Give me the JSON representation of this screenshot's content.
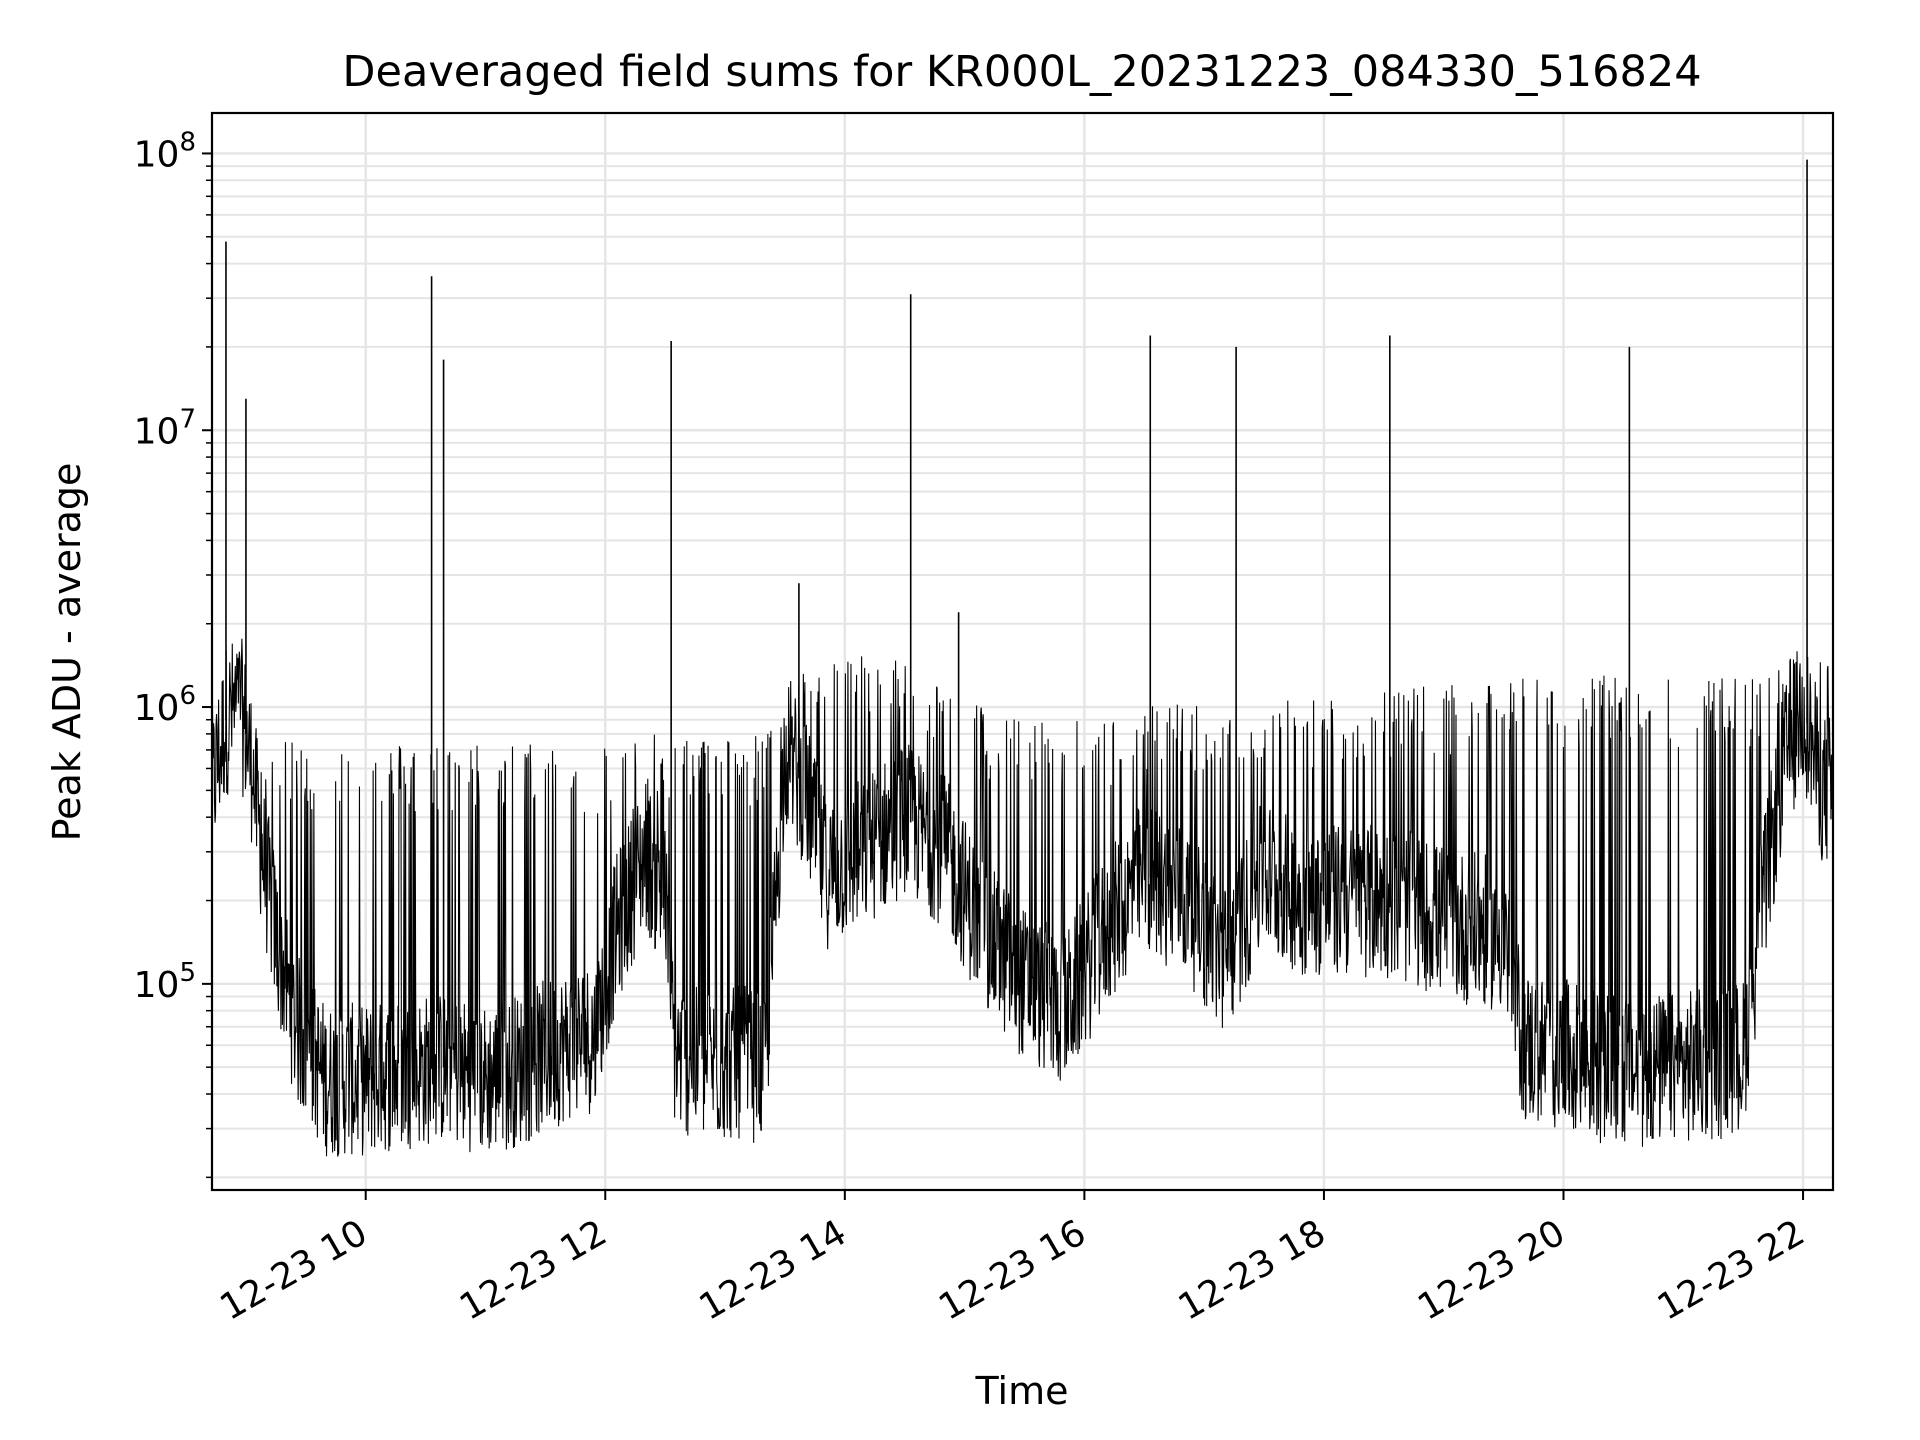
{
  "chart_data": {
    "type": "line",
    "title": "Deaveraged field sums for KR000L_20231223_084330_516824",
    "xlabel": "Time",
    "ylabel": "Peak ADU - average",
    "y_scale": "log",
    "ylim": [
      18000,
      140000000
    ],
    "xlim": [
      "2023-12-23 08:43",
      "2023-12-23 22:15"
    ],
    "grid": true,
    "line_color": "#000000",
    "grid_color": "#e5e5e5",
    "x_ticks": [
      {
        "value": "2023-12-23 10:00",
        "label": "12-23 10"
      },
      {
        "value": "2023-12-23 12:00",
        "label": "12-23 12"
      },
      {
        "value": "2023-12-23 14:00",
        "label": "12-23 14"
      },
      {
        "value": "2023-12-23 16:00",
        "label": "12-23 16"
      },
      {
        "value": "2023-12-23 18:00",
        "label": "12-23 18"
      },
      {
        "value": "2023-12-23 20:00",
        "label": "12-23 20"
      },
      {
        "value": "2023-12-23 22:00",
        "label": "12-23 22"
      }
    ],
    "y_ticks": [
      {
        "value": 100000,
        "base": "10",
        "exp": "5"
      },
      {
        "value": 1000000,
        "base": "10",
        "exp": "6"
      },
      {
        "value": 10000000,
        "base": "10",
        "exp": "7"
      },
      {
        "value": 100000000,
        "base": "10",
        "exp": "8"
      }
    ],
    "series": [
      {
        "x": [
          "2023-12-23 08:43",
          "2023-12-23 08:50",
          "2023-12-23 08:57",
          "2023-12-23 09:00",
          "2023-12-23 09:03",
          "2023-12-23 09:08",
          "2023-12-23 09:15",
          "2023-12-23 09:25",
          "2023-12-23 09:40",
          "2023-12-23 10:00",
          "2023-12-23 10:20",
          "2023-12-23 10:40",
          "2023-12-23 11:00",
          "2023-12-23 11:20",
          "2023-12-23 11:40",
          "2023-12-23 11:55",
          "2023-12-23 12:05",
          "2023-12-23 12:20",
          "2023-12-23 12:30",
          "2023-12-23 12:35",
          "2023-12-23 12:50",
          "2023-12-23 13:10",
          "2023-12-23 13:20",
          "2023-12-23 13:30",
          "2023-12-23 13:40",
          "2023-12-23 13:50",
          "2023-12-23 14:10",
          "2023-12-23 14:30",
          "2023-12-23 14:50",
          "2023-12-23 15:10",
          "2023-12-23 15:30",
          "2023-12-23 15:50",
          "2023-12-23 16:10",
          "2023-12-23 16:30",
          "2023-12-23 16:50",
          "2023-12-23 17:10",
          "2023-12-23 17:30",
          "2023-12-23 17:50",
          "2023-12-23 18:10",
          "2023-12-23 18:30",
          "2023-12-23 18:50",
          "2023-12-23 19:10",
          "2023-12-23 19:30",
          "2023-12-23 19:40",
          "2023-12-23 20:00",
          "2023-12-23 20:20",
          "2023-12-23 20:40",
          "2023-12-23 21:00",
          "2023-12-23 21:20",
          "2023-12-23 21:30",
          "2023-12-23 21:40",
          "2023-12-23 21:50",
          "2023-12-23 22:00",
          "2023-12-23 22:10",
          "2023-12-23 22:15"
        ],
        "y": [
          500000,
          900000,
          1000000,
          800000,
          600000,
          300000,
          150000,
          70000,
          45000,
          45000,
          48000,
          50000,
          45000,
          50000,
          60000,
          65000,
          150000,
          300000,
          200000,
          55000,
          50000,
          52000,
          48000,
          700000,
          500000,
          250000,
          300000,
          400000,
          300000,
          150000,
          100000,
          80000,
          150000,
          250000,
          200000,
          120000,
          250000,
          200000,
          200000,
          200000,
          180000,
          160000,
          150000,
          60000,
          55000,
          50000,
          48000,
          50000,
          52000,
          55000,
          200000,
          600000,
          1000000,
          500000,
          500000
        ],
        "envelope_high": [
          1000000,
          1300000,
          1600000,
          1000000,
          800000,
          750000,
          750000,
          750000,
          750000,
          750000,
          750000,
          750000,
          750000,
          750000,
          750000,
          750000,
          750000,
          800000,
          800000,
          800000,
          800000,
          800000,
          800000,
          1200000,
          1400000,
          1500000,
          1600000,
          1500000,
          1300000,
          1000000,
          900000,
          900000,
          900000,
          1000000,
          1100000,
          1000000,
          1100000,
          1100000,
          1100000,
          1200000,
          1200000,
          1200000,
          1200000,
          1300000,
          1300000,
          1300000,
          1300000,
          1300000,
          1300000,
          1300000,
          1300000,
          1400000,
          1700000,
          1500000,
          1500000
        ],
        "spikes": [
          {
            "x": "2023-12-23 08:50",
            "y": 48000000
          },
          {
            "x": "2023-12-23 09:00",
            "y": 13000000
          },
          {
            "x": "2023-12-23 10:33",
            "y": 36000000
          },
          {
            "x": "2023-12-23 10:39",
            "y": 18000000
          },
          {
            "x": "2023-12-23 12:33",
            "y": 21000000
          },
          {
            "x": "2023-12-23 13:37",
            "y": 2800000
          },
          {
            "x": "2023-12-23 14:33",
            "y": 31000000
          },
          {
            "x": "2023-12-23 14:57",
            "y": 2200000
          },
          {
            "x": "2023-12-23 16:33",
            "y": 22000000
          },
          {
            "x": "2023-12-23 17:16",
            "y": 20000000
          },
          {
            "x": "2023-12-23 18:33",
            "y": 22000000
          },
          {
            "x": "2023-12-23 20:33",
            "y": 20000000
          },
          {
            "x": "2023-12-23 22:02",
            "y": 95000000
          }
        ]
      }
    ]
  }
}
